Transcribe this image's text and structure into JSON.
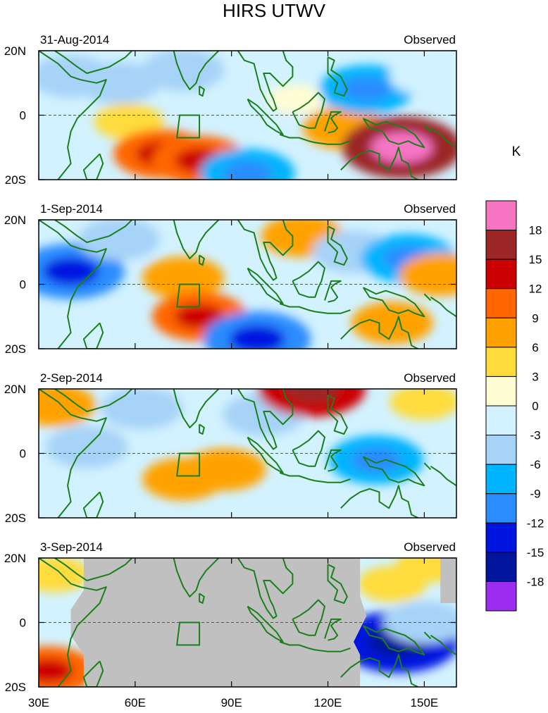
{
  "chart_data": {
    "type": "heatmap",
    "title": "HIRS UTWV",
    "units": "K",
    "x_ticks": [
      "30E",
      "60E",
      "90E",
      "120E",
      "150E"
    ],
    "x_tick_values": [
      30,
      60,
      90,
      120,
      150
    ],
    "y_ticks": [
      "20N",
      "0",
      "20S"
    ],
    "y_tick_values": [
      20,
      0,
      -20
    ],
    "xlim": [
      30,
      160
    ],
    "ylim": [
      -20,
      20
    ],
    "panels": [
      {
        "date": "31-Aug-2014",
        "label": "Observed",
        "features": [
          {
            "lon": 40,
            "lat": 12,
            "value": -6
          },
          {
            "lon": 55,
            "lat": 10,
            "value": -6
          },
          {
            "lon": 58,
            "lat": -2,
            "value": 3
          },
          {
            "lon": 68,
            "lat": -12,
            "value": 9
          },
          {
            "lon": 80,
            "lat": -14,
            "value": 9
          },
          {
            "lon": 75,
            "lat": 14,
            "value": -6
          },
          {
            "lon": 95,
            "lat": -18,
            "value": -9
          },
          {
            "lon": 110,
            "lat": 5,
            "value": 0
          },
          {
            "lon": 125,
            "lat": -4,
            "value": 6
          },
          {
            "lon": 132,
            "lat": 8,
            "value": -9
          },
          {
            "lon": 143,
            "lat": -10,
            "value": 15
          },
          {
            "lon": 150,
            "lat": 12,
            "value": -3
          }
        ]
      },
      {
        "date": "1-Sep-2014",
        "label": "Observed",
        "features": [
          {
            "lon": 40,
            "lat": 4,
            "value": -12
          },
          {
            "lon": 55,
            "lat": 14,
            "value": -6
          },
          {
            "lon": 75,
            "lat": 2,
            "value": 6
          },
          {
            "lon": 80,
            "lat": -10,
            "value": 9
          },
          {
            "lon": 98,
            "lat": -17,
            "value": -12
          },
          {
            "lon": 112,
            "lat": 15,
            "value": 6
          },
          {
            "lon": 128,
            "lat": 10,
            "value": -6
          },
          {
            "lon": 140,
            "lat": -12,
            "value": 6
          },
          {
            "lon": 145,
            "lat": 8,
            "value": -9
          },
          {
            "lon": 155,
            "lat": 3,
            "value": 6
          }
        ]
      },
      {
        "date": "2-Sep-2014",
        "label": "Observed",
        "features": [
          {
            "lon": 35,
            "lat": 15,
            "value": 6
          },
          {
            "lon": 45,
            "lat": 2,
            "value": -6
          },
          {
            "lon": 62,
            "lat": 14,
            "value": -6
          },
          {
            "lon": 75,
            "lat": -8,
            "value": 6
          },
          {
            "lon": 88,
            "lat": -5,
            "value": 6
          },
          {
            "lon": 100,
            "lat": 12,
            "value": -6
          },
          {
            "lon": 115,
            "lat": 20,
            "value": 12
          },
          {
            "lon": 135,
            "lat": -2,
            "value": -9
          },
          {
            "lon": 150,
            "lat": 16,
            "value": 3
          }
        ]
      },
      {
        "date": "3-Sep-2014",
        "label": "Observed",
        "features": [
          {
            "lon": 33,
            "lat": -15,
            "value": 9
          },
          {
            "lon": 35,
            "lat": 15,
            "value": 3
          },
          {
            "lon": 142,
            "lat": -6,
            "value": -15
          },
          {
            "lon": 140,
            "lat": 12,
            "value": 3
          },
          {
            "lon": 150,
            "lat": 0,
            "value": -6
          },
          {
            "lon": 152,
            "lat": 18,
            "value": 3
          }
        ],
        "missing_region": "most of domain (gray)"
      }
    ],
    "colorbar": {
      "labels": [
        "18",
        "15",
        "12",
        "9",
        "6",
        "3",
        "0",
        "-3",
        "-6",
        "-9",
        "-12",
        "-15",
        "-18"
      ],
      "colors": [
        "#f774c4",
        "#9c2526",
        "#cc0000",
        "#ff6600",
        "#ffa200",
        "#ffdc3c",
        "#fffdd3",
        "#d2f2ff",
        "#a7d3f8",
        "#00b4ff",
        "#2a8cff",
        "#0014e0",
        "#00149c",
        "#9b2cf0"
      ]
    },
    "missing_color": "#c0c0c0",
    "coast_color": "#1a7f1a"
  }
}
